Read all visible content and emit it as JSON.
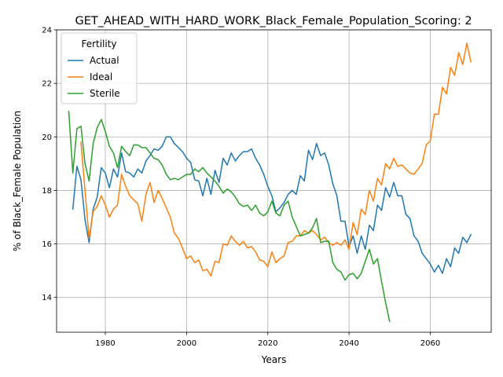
{
  "chart_data": {
    "type": "line",
    "title": "GET_AHEAD_WITH_HARD_WORK_Black_Female_Population_Scoring: 2",
    "xlabel": "Years",
    "ylabel": "% of Black_Female Population",
    "xlim": [
      1968,
      2075
    ],
    "ylim": [
      12.7,
      24.0
    ],
    "xticks": [
      1980,
      2000,
      2020,
      2040,
      2060
    ],
    "yticks": [
      14,
      16,
      18,
      20,
      22,
      24
    ],
    "grid": true,
    "legend": {
      "title": "Fertility",
      "position": "upper-left"
    },
    "series": [
      {
        "name": "Actual",
        "color": "#1f77b4",
        "x": [
          1972,
          1973,
          1974,
          1975,
          1976,
          1977,
          1978,
          1979,
          1980,
          1981,
          1982,
          1983,
          1984,
          1985,
          1986,
          1987,
          1988,
          1989,
          1990,
          1991,
          1992,
          1993,
          1994,
          1995,
          1996,
          1997,
          1998,
          1999,
          2000,
          2001,
          2002,
          2003,
          2004,
          2005,
          2006,
          2007,
          2008,
          2009,
          2010,
          2011,
          2012,
          2013,
          2014,
          2015,
          2016,
          2017,
          2018,
          2019,
          2020,
          2021,
          2022,
          2023,
          2024,
          2025,
          2026,
          2027,
          2028,
          2029,
          2030,
          2031,
          2032,
          2033,
          2034,
          2035,
          2036,
          2037,
          2038,
          2039,
          2040,
          2041,
          2042,
          2043,
          2044,
          2045,
          2046,
          2047,
          2048,
          2049,
          2050,
          2051,
          2052,
          2053,
          2054,
          2055,
          2056,
          2057,
          2058,
          2059,
          2060,
          2061,
          2062,
          2063,
          2064,
          2065,
          2066,
          2067,
          2068,
          2069,
          2070
        ],
        "values": [
          17.3,
          18.9,
          18.4,
          16.9,
          16.05,
          17.3,
          17.75,
          18.85,
          18.65,
          18.1,
          18.8,
          18.5,
          19.4,
          18.7,
          18.65,
          18.5,
          18.8,
          18.65,
          19.1,
          19.3,
          19.55,
          19.5,
          19.65,
          20.0,
          20.0,
          19.75,
          19.6,
          19.45,
          19.2,
          19.05,
          18.4,
          18.35,
          17.8,
          18.45,
          17.85,
          18.75,
          18.3,
          19.2,
          18.95,
          19.4,
          19.1,
          19.3,
          19.45,
          19.45,
          19.55,
          19.2,
          18.95,
          18.6,
          18.15,
          17.8,
          17.2,
          17.35,
          17.55,
          17.85,
          18.0,
          17.85,
          18.55,
          18.35,
          19.5,
          19.15,
          19.75,
          19.3,
          19.4,
          18.95,
          18.25,
          17.8,
          16.85,
          16.85,
          15.9,
          16.3,
          15.65,
          16.3,
          15.8,
          16.7,
          16.5,
          17.45,
          17.25,
          18.1,
          17.75,
          18.3,
          17.8,
          17.8,
          17.1,
          16.95,
          16.3,
          16.1,
          15.65,
          15.45,
          15.25,
          14.95,
          15.2,
          14.9,
          15.45,
          15.15,
          15.85,
          15.65,
          16.25,
          16.05,
          16.35
        ]
      },
      {
        "name": "Ideal",
        "color": "#ff7f0e",
        "x": [
          1974,
          1975,
          1976,
          1977,
          1978,
          1979,
          1980,
          1981,
          1982,
          1983,
          1984,
          1985,
          1986,
          1987,
          1988,
          1989,
          1990,
          1991,
          1992,
          1993,
          1994,
          1995,
          1996,
          1997,
          1998,
          1999,
          2000,
          2001,
          2002,
          2003,
          2004,
          2005,
          2006,
          2007,
          2008,
          2009,
          2010,
          2011,
          2012,
          2013,
          2014,
          2015,
          2016,
          2017,
          2018,
          2019,
          2020,
          2021,
          2022,
          2023,
          2024,
          2025,
          2026,
          2027,
          2028,
          2029,
          2030,
          2031,
          2032,
          2033,
          2034,
          2035,
          2036,
          2037,
          2038,
          2039,
          2040,
          2041,
          2042,
          2043,
          2044,
          2045,
          2046,
          2047,
          2048,
          2049,
          2050,
          2051,
          2052,
          2053,
          2054,
          2055,
          2056,
          2057,
          2058,
          2059,
          2060,
          2061,
          2062,
          2063,
          2064,
          2065,
          2066,
          2067,
          2068,
          2069,
          2070
        ],
        "values": [
          19.8,
          18.0,
          16.2,
          17.2,
          17.4,
          17.8,
          17.45,
          17.0,
          17.3,
          17.45,
          18.6,
          18.15,
          17.8,
          17.65,
          17.5,
          16.85,
          17.85,
          18.3,
          17.55,
          18.0,
          17.7,
          17.35,
          17.0,
          16.4,
          16.2,
          15.85,
          15.45,
          15.55,
          15.3,
          15.4,
          15.0,
          15.05,
          14.8,
          15.35,
          15.3,
          16.0,
          15.95,
          16.3,
          16.1,
          15.95,
          16.1,
          15.85,
          15.9,
          15.7,
          15.4,
          15.35,
          15.15,
          15.7,
          15.3,
          15.45,
          15.55,
          16.05,
          16.1,
          16.3,
          16.3,
          16.5,
          16.4,
          16.5,
          16.35,
          16.15,
          16.25,
          16.05,
          15.95,
          16.05,
          15.95,
          16.15,
          15.8,
          16.8,
          16.35,
          17.3,
          17.1,
          18.0,
          17.6,
          18.45,
          18.2,
          19.0,
          18.8,
          19.2,
          18.9,
          18.95,
          18.8,
          18.65,
          18.6,
          18.8,
          19.0,
          19.7,
          19.85,
          20.85,
          20.85,
          21.85,
          21.6,
          22.6,
          22.3,
          23.15,
          22.7,
          23.5,
          22.8
        ]
      },
      {
        "name": "Sterile",
        "color": "#2ca02c",
        "x": [
          1971,
          1972,
          1973,
          1974,
          1975,
          1976,
          1977,
          1978,
          1979,
          1980,
          1981,
          1982,
          1983,
          1984,
          1985,
          1986,
          1987,
          1988,
          1989,
          1990,
          1991,
          1992,
          1993,
          1994,
          1995,
          1996,
          1997,
          1998,
          1999,
          2000,
          2001,
          2002,
          2003,
          2004,
          2005,
          2006,
          2007,
          2008,
          2009,
          2010,
          2011,
          2012,
          2013,
          2014,
          2015,
          2016,
          2017,
          2018,
          2019,
          2020,
          2021,
          2022,
          2023,
          2024,
          2025,
          2026,
          2027,
          2028,
          2029,
          2030,
          2031,
          2032,
          2033,
          2034,
          2035,
          2036,
          2037,
          2038,
          2039,
          2040,
          2041,
          2042,
          2043,
          2044,
          2045,
          2046,
          2047,
          2048,
          2049,
          2050
        ],
        "values": [
          20.95,
          18.65,
          20.3,
          20.4,
          19.0,
          18.35,
          19.75,
          20.35,
          20.65,
          20.2,
          19.65,
          19.4,
          18.85,
          19.65,
          19.45,
          19.3,
          19.7,
          19.7,
          19.6,
          19.6,
          19.4,
          19.2,
          19.15,
          18.95,
          18.6,
          18.4,
          18.45,
          18.4,
          18.5,
          18.6,
          18.6,
          18.8,
          18.7,
          18.85,
          18.65,
          18.5,
          18.35,
          18.15,
          17.9,
          18.05,
          17.95,
          17.75,
          17.5,
          17.4,
          17.45,
          17.25,
          17.45,
          17.15,
          17.05,
          17.2,
          17.6,
          17.15,
          17.05,
          17.45,
          17.6,
          17.0,
          16.65,
          16.3,
          16.35,
          16.4,
          16.6,
          16.95,
          16.05,
          16.1,
          16.1,
          15.3,
          15.05,
          14.95,
          14.65,
          14.85,
          14.9,
          14.7,
          14.9,
          15.35,
          15.8,
          15.25,
          15.45,
          14.6,
          13.8,
          13.1
        ]
      }
    ]
  }
}
